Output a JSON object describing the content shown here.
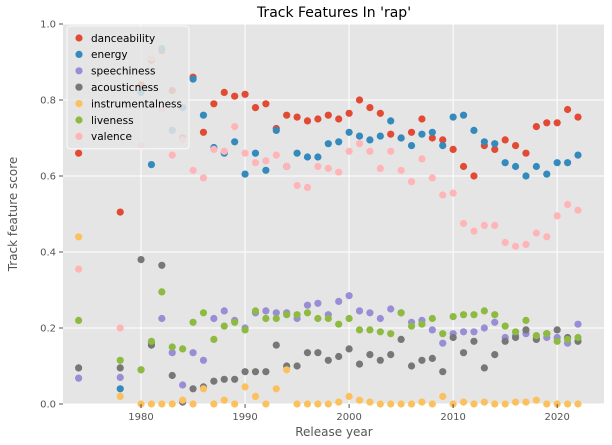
{
  "chart_data": {
    "type": "scatter",
    "title": "Track Features In 'rap'",
    "xlabel": "Release year",
    "ylabel": "Track feature score",
    "xlim": [
      1972.5,
      2024.5
    ],
    "ylim": [
      0,
      1
    ],
    "xticks": [
      1980,
      1990,
      2000,
      2010,
      2020
    ],
    "yticks": [
      0.0,
      0.2,
      0.4,
      0.6,
      0.8,
      1.0
    ],
    "grid": true,
    "legend_position": "top-left",
    "x": [
      1974,
      1978,
      1980,
      1981,
      1982,
      1983,
      1984,
      1985,
      1986,
      1987,
      1988,
      1989,
      1990,
      1991,
      1992,
      1993,
      1994,
      1995,
      1996,
      1997,
      1998,
      1999,
      2000,
      2001,
      2002,
      2003,
      2004,
      2005,
      2006,
      2007,
      2008,
      2009,
      2010,
      2011,
      2012,
      2013,
      2014,
      2015,
      2016,
      2017,
      2018,
      2019,
      2020,
      2021,
      2022
    ],
    "series": [
      {
        "name": "danceability",
        "color": "#e24a33",
        "values": [
          0.66,
          0.505,
          0.84,
          0.905,
          0.93,
          0.825,
          0.7,
          0.86,
          0.715,
          0.79,
          0.82,
          0.81,
          0.815,
          0.78,
          0.79,
          0.725,
          0.76,
          0.755,
          0.745,
          0.75,
          0.76,
          0.75,
          0.765,
          0.8,
          0.78,
          0.765,
          0.71,
          0.7,
          0.715,
          0.75,
          0.7,
          0.695,
          0.67,
          0.625,
          0.6,
          0.68,
          0.67,
          0.695,
          0.68,
          0.66,
          0.73,
          0.74,
          0.74,
          0.775,
          0.755
        ]
      },
      {
        "name": "energy",
        "color": "#348abd",
        "values": [
          0.835,
          0.04,
          0.82,
          0.63,
          0.935,
          0.72,
          0.78,
          0.855,
          0.76,
          0.675,
          0.66,
          0.69,
          0.605,
          0.66,
          0.615,
          0.72,
          0.625,
          0.66,
          0.65,
          0.65,
          0.685,
          0.69,
          0.715,
          0.705,
          0.695,
          0.705,
          0.745,
          0.7,
          0.68,
          0.71,
          0.715,
          0.68,
          0.755,
          0.76,
          0.72,
          0.69,
          0.685,
          0.635,
          0.625,
          0.6,
          0.625,
          0.605,
          0.635,
          0.635,
          0.655
        ]
      },
      {
        "name": "speechiness",
        "color": "#988ed5",
        "values": [
          0.068,
          0.07,
          0.09,
          0.16,
          0.225,
          0.135,
          0.05,
          0.135,
          0.115,
          0.225,
          0.245,
          0.22,
          0.2,
          0.24,
          0.245,
          0.24,
          0.24,
          0.225,
          0.26,
          0.265,
          0.235,
          0.27,
          0.285,
          0.245,
          0.24,
          0.225,
          0.25,
          0.24,
          0.215,
          0.22,
          0.195,
          0.16,
          0.185,
          0.19,
          0.19,
          0.2,
          0.215,
          0.175,
          0.18,
          0.185,
          0.175,
          0.175,
          0.175,
          0.16,
          0.21
        ]
      },
      {
        "name": "acousticness",
        "color": "#777777",
        "values": [
          0.095,
          0.095,
          0.38,
          0.155,
          0.365,
          0.075,
          0.005,
          0.04,
          0.045,
          0.06,
          0.065,
          0.065,
          0.085,
          0.085,
          0.085,
          0.155,
          0.1,
          0.1,
          0.135,
          0.135,
          0.115,
          0.125,
          0.145,
          0.105,
          0.13,
          0.115,
          0.13,
          0.17,
          0.1,
          0.115,
          0.12,
          0.085,
          0.175,
          0.135,
          0.165,
          0.095,
          0.13,
          0.165,
          0.175,
          0.195,
          0.17,
          0.185,
          0.195,
          0.175,
          0.165
        ]
      },
      {
        "name": "instrumentalness",
        "color": "#fbc15e",
        "values": [
          0.44,
          0.02,
          0.0,
          0.0,
          0.0,
          0.0,
          0.01,
          0.0,
          0.04,
          0.0,
          0.01,
          0.0,
          0.045,
          0.02,
          0.0,
          0.04,
          0.09,
          0.0,
          0.0,
          0.0,
          0.0,
          0.005,
          0.02,
          0.01,
          0.005,
          0.0,
          0.0,
          0.0,
          0.0,
          0.005,
          0.0,
          0.02,
          0.0,
          0.005,
          0.0,
          0.005,
          0.0,
          0.0,
          0.005,
          0.005,
          0.01,
          0.0,
          0.0,
          0.0,
          0.0
        ]
      },
      {
        "name": "liveness",
        "color": "#8eba42",
        "values": [
          0.22,
          0.115,
          0.09,
          0.165,
          0.295,
          0.15,
          0.145,
          0.215,
          0.24,
          0.17,
          0.205,
          0.215,
          0.195,
          0.245,
          0.225,
          0.225,
          0.235,
          0.235,
          0.24,
          0.225,
          0.225,
          0.21,
          0.225,
          0.195,
          0.195,
          0.19,
          0.185,
          0.24,
          0.205,
          0.21,
          0.225,
          0.185,
          0.23,
          0.235,
          0.235,
          0.245,
          0.235,
          0.205,
          0.19,
          0.22,
          0.18,
          0.185,
          0.165,
          0.17,
          0.175
        ]
      },
      {
        "name": "valence",
        "color": "#ffb5b8",
        "values": [
          0.355,
          0.2,
          0.68,
          0.91,
          0.775,
          0.655,
          0.695,
          0.615,
          0.595,
          0.67,
          0.665,
          0.73,
          0.66,
          0.635,
          0.64,
          0.655,
          0.625,
          0.575,
          0.57,
          0.625,
          0.62,
          0.61,
          0.665,
          0.685,
          0.665,
          0.62,
          0.665,
          0.615,
          0.585,
          0.645,
          0.595,
          0.55,
          0.555,
          0.475,
          0.455,
          0.47,
          0.47,
          0.425,
          0.415,
          0.42,
          0.45,
          0.44,
          0.495,
          0.525,
          0.51
        ]
      }
    ]
  }
}
